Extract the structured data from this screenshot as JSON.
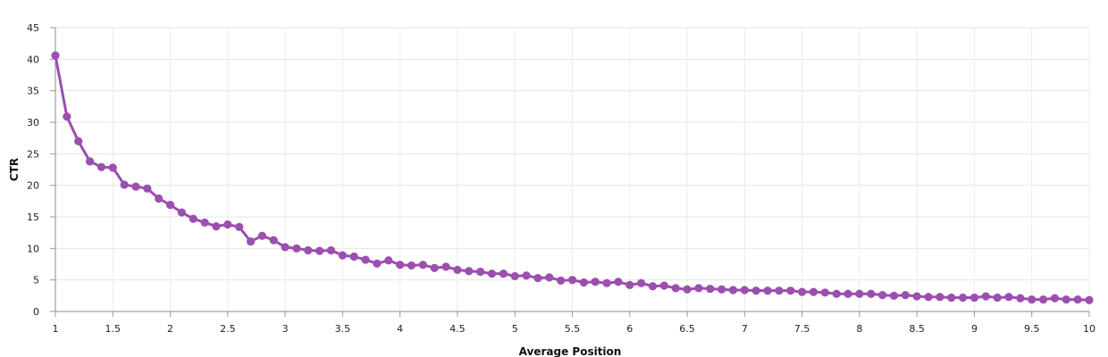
{
  "chart_data": {
    "type": "line",
    "xlabel": "Average Position",
    "ylabel": "CTR",
    "xlim": [
      1,
      10
    ],
    "ylim": [
      0,
      45
    ],
    "x_ticks": [
      "1",
      "1.5",
      "2",
      "2.5",
      "3",
      "3.5",
      "4",
      "4.5",
      "5",
      "5.5",
      "6",
      "6.5",
      "7",
      "7.5",
      "8",
      "8.5",
      "9",
      "9.5",
      "10"
    ],
    "y_ticks": [
      "0",
      "5",
      "10",
      "15",
      "20",
      "25",
      "30",
      "35",
      "40",
      "45"
    ],
    "grid": true,
    "color": "#9b4fae",
    "series": [
      {
        "x": [
          1.0,
          1.1,
          1.2,
          1.3,
          1.4,
          1.5,
          1.6,
          1.7,
          1.8,
          1.9,
          2.0,
          2.1,
          2.2,
          2.3,
          2.4,
          2.5,
          2.6,
          2.7,
          2.8,
          2.9,
          3.0,
          3.1,
          3.2,
          3.3,
          3.4,
          3.5,
          3.6,
          3.7,
          3.8,
          3.9,
          4.0,
          4.1,
          4.2,
          4.3,
          4.4,
          4.5,
          4.6,
          4.7,
          4.8,
          4.9,
          5.0,
          5.1,
          5.2,
          5.3,
          5.4,
          5.5,
          5.6,
          5.7,
          5.8,
          5.9,
          6.0,
          6.1,
          6.2,
          6.3,
          6.4,
          6.5,
          6.6,
          6.7,
          6.8,
          6.9,
          7.0,
          7.1,
          7.2,
          7.3,
          7.4,
          7.5,
          7.6,
          7.7,
          7.8,
          7.9,
          8.0,
          8.1,
          8.2,
          8.3,
          8.4,
          8.5,
          8.6,
          8.7,
          8.8,
          8.9,
          9.0,
          9.1,
          9.2,
          9.3,
          9.4,
          9.5,
          9.6,
          9.7,
          9.8,
          9.9,
          10.0
        ],
        "values": [
          40.6,
          30.9,
          27.0,
          23.8,
          22.9,
          22.8,
          20.1,
          19.8,
          19.5,
          17.9,
          16.9,
          15.7,
          14.7,
          14.1,
          13.5,
          13.8,
          13.4,
          11.1,
          12.0,
          11.3,
          10.2,
          10.0,
          9.7,
          9.6,
          9.7,
          8.9,
          8.7,
          8.2,
          7.6,
          8.1,
          7.4,
          7.3,
          7.4,
          6.9,
          7.1,
          6.6,
          6.4,
          6.3,
          6.0,
          6.0,
          5.6,
          5.7,
          5.3,
          5.4,
          4.9,
          5.0,
          4.6,
          4.7,
          4.5,
          4.7,
          4.2,
          4.5,
          4.0,
          4.1,
          3.7,
          3.5,
          3.7,
          3.6,
          3.5,
          3.4,
          3.4,
          3.3,
          3.3,
          3.3,
          3.3,
          3.1,
          3.1,
          3.0,
          2.8,
          2.8,
          2.8,
          2.8,
          2.6,
          2.5,
          2.6,
          2.4,
          2.3,
          2.3,
          2.2,
          2.2,
          2.2,
          2.4,
          2.2,
          2.3,
          2.1,
          1.9,
          1.9,
          2.1,
          1.9,
          1.9,
          1.8
        ]
      }
    ]
  }
}
